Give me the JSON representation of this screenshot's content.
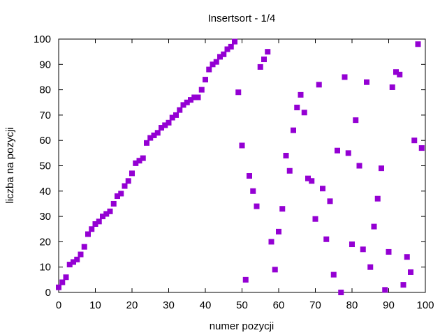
{
  "chart_data": {
    "type": "scatter",
    "title": "Insertsort - 1/4",
    "xlabel": "numer pozycji",
    "ylabel": "liczba na pozycji",
    "xlim": [
      0,
      100
    ],
    "ylim": [
      0,
      100
    ],
    "xticks": [
      0,
      10,
      20,
      30,
      40,
      50,
      60,
      70,
      80,
      90,
      100
    ],
    "yticks": [
      0,
      10,
      20,
      30,
      40,
      50,
      60,
      70,
      80,
      90,
      100
    ],
    "grid": false,
    "marker_color": "#9400d3",
    "marker": "square",
    "points": [
      [
        0,
        2
      ],
      [
        1,
        4
      ],
      [
        2,
        6
      ],
      [
        3,
        11
      ],
      [
        4,
        12
      ],
      [
        5,
        13
      ],
      [
        6,
        15
      ],
      [
        7,
        18
      ],
      [
        8,
        23
      ],
      [
        9,
        25
      ],
      [
        10,
        27
      ],
      [
        11,
        28
      ],
      [
        12,
        30
      ],
      [
        13,
        31
      ],
      [
        14,
        32
      ],
      [
        15,
        35
      ],
      [
        16,
        38
      ],
      [
        17,
        39
      ],
      [
        18,
        42
      ],
      [
        19,
        44
      ],
      [
        20,
        47
      ],
      [
        21,
        51
      ],
      [
        22,
        52
      ],
      [
        23,
        53
      ],
      [
        24,
        59
      ],
      [
        25,
        61
      ],
      [
        26,
        62
      ],
      [
        27,
        63
      ],
      [
        28,
        65
      ],
      [
        29,
        66
      ],
      [
        30,
        67
      ],
      [
        31,
        69
      ],
      [
        32,
        70
      ],
      [
        33,
        72
      ],
      [
        34,
        74
      ],
      [
        35,
        75
      ],
      [
        36,
        76
      ],
      [
        37,
        77
      ],
      [
        38,
        77
      ],
      [
        39,
        80
      ],
      [
        40,
        84
      ],
      [
        41,
        88
      ],
      [
        42,
        90
      ],
      [
        43,
        91
      ],
      [
        44,
        93
      ],
      [
        45,
        94
      ],
      [
        46,
        96
      ],
      [
        47,
        97
      ],
      [
        48,
        99
      ],
      [
        49,
        79
      ],
      [
        50,
        58
      ],
      [
        51,
        5
      ],
      [
        52,
        46
      ],
      [
        53,
        40
      ],
      [
        54,
        34
      ],
      [
        55,
        89
      ],
      [
        56,
        92
      ],
      [
        57,
        95
      ],
      [
        58,
        20
      ],
      [
        59,
        9
      ],
      [
        60,
        24
      ],
      [
        61,
        33
      ],
      [
        62,
        54
      ],
      [
        63,
        48
      ],
      [
        64,
        64
      ],
      [
        65,
        73
      ],
      [
        66,
        78
      ],
      [
        67,
        71
      ],
      [
        68,
        45
      ],
      [
        69,
        44
      ],
      [
        70,
        29
      ],
      [
        71,
        82
      ],
      [
        72,
        41
      ],
      [
        73,
        21
      ],
      [
        74,
        36
      ],
      [
        75,
        7
      ],
      [
        76,
        56
      ],
      [
        77,
        0
      ],
      [
        78,
        85
      ],
      [
        79,
        55
      ],
      [
        80,
        19
      ],
      [
        81,
        68
      ],
      [
        82,
        50
      ],
      [
        83,
        17
      ],
      [
        84,
        83
      ],
      [
        85,
        10
      ],
      [
        86,
        26
      ],
      [
        87,
        37
      ],
      [
        88,
        49
      ],
      [
        89,
        1
      ],
      [
        90,
        16
      ],
      [
        91,
        81
      ],
      [
        92,
        87
      ],
      [
        93,
        86
      ],
      [
        94,
        3
      ],
      [
        95,
        14
      ],
      [
        96,
        8
      ],
      [
        97,
        60
      ],
      [
        98,
        98
      ],
      [
        99,
        57
      ]
    ]
  }
}
